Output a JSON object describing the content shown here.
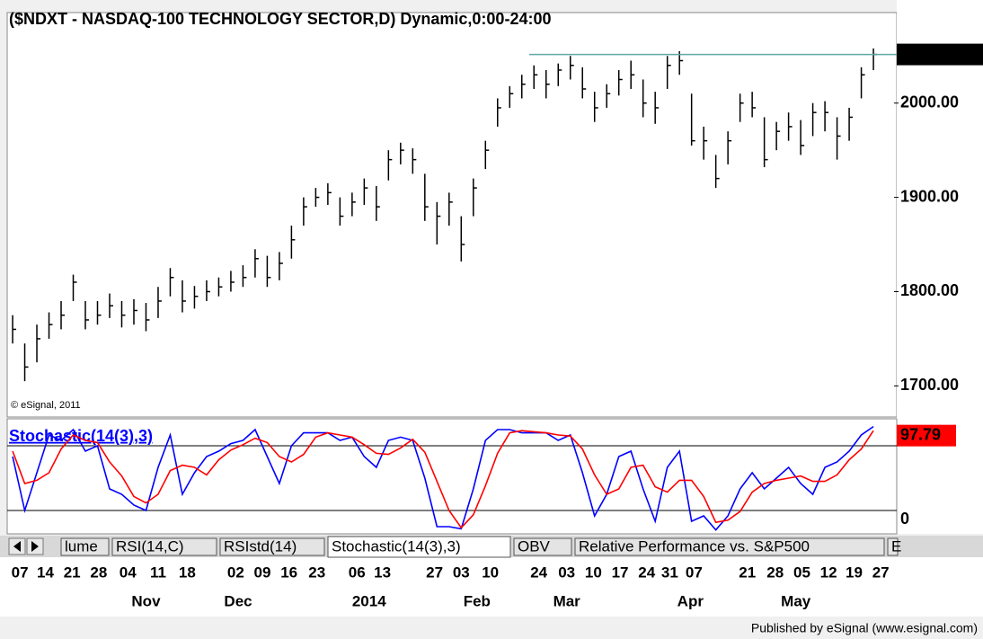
{
  "chart_data": [
    {
      "type": "ohlc",
      "title": "($NDXT - NASDAQ-100 TECHNOLOGY SECTOR,D) Dynamic,0:00-24:00",
      "annotation": "© eSignal, 2011",
      "color": "#000000",
      "last_color": "#5fa8a8",
      "xlim": [
        -0.3,
        72.7
      ],
      "ylim": [
        1667,
        2096
      ],
      "yticks": [
        {
          "value": 1700,
          "label": "1700.00"
        },
        {
          "value": 1800,
          "label": "1800.00"
        },
        {
          "value": 1900,
          "label": "1900.00"
        },
        {
          "value": 2000,
          "label": "2000.00"
        }
      ],
      "xticks": [
        {
          "value": 0.6,
          "label": "07"
        },
        {
          "value": 2.7,
          "label": "14"
        },
        {
          "value": 4.9,
          "label": "21"
        },
        {
          "value": 7.1,
          "label": "28"
        },
        {
          "value": 9.5,
          "label": "04"
        },
        {
          "value": 12.0,
          "label": "11"
        },
        {
          "value": 14.4,
          "label": "18"
        },
        {
          "value": 18.4,
          "label": "02"
        },
        {
          "value": 20.6,
          "label": "09"
        },
        {
          "value": 22.8,
          "label": "16"
        },
        {
          "value": 25.1,
          "label": "23"
        },
        {
          "value": 28.4,
          "label": "06"
        },
        {
          "value": 30.5,
          "label": "13"
        },
        {
          "value": 34.8,
          "label": "27"
        },
        {
          "value": 37.0,
          "label": "03"
        },
        {
          "value": 39.4,
          "label": "10"
        },
        {
          "value": 43.4,
          "label": "24"
        },
        {
          "value": 45.7,
          "label": "03"
        },
        {
          "value": 47.9,
          "label": "10"
        },
        {
          "value": 50.1,
          "label": "17"
        },
        {
          "value": 52.3,
          "label": "24"
        },
        {
          "value": 54.2,
          "label": "31"
        },
        {
          "value": 56.2,
          "label": "07"
        },
        {
          "value": 60.6,
          "label": "21"
        },
        {
          "value": 62.9,
          "label": "28"
        },
        {
          "value": 65.1,
          "label": "05"
        },
        {
          "value": 67.3,
          "label": "12"
        },
        {
          "value": 69.4,
          "label": "19"
        },
        {
          "value": 71.6,
          "label": "27"
        }
      ],
      "month_ticks": [
        {
          "value": 11.0,
          "label": "Nov"
        },
        {
          "value": 18.6,
          "label": "Dec"
        },
        {
          "value": 29.4,
          "label": "2014"
        },
        {
          "value": 38.3,
          "label": "Feb"
        },
        {
          "value": 45.7,
          "label": "Mar"
        },
        {
          "value": 55.9,
          "label": "Apr"
        },
        {
          "value": 64.6,
          "label": "May"
        }
      ],
      "high": [
        1775,
        1745,
        1765,
        1778,
        1790,
        1818,
        1790,
        1790,
        1798,
        1790,
        1792,
        1788,
        1805,
        1825,
        1812,
        1806,
        1812,
        1815,
        1822,
        1828,
        1845,
        1838,
        1842,
        1870,
        1900,
        1910,
        1915,
        1900,
        1905,
        1920,
        1912,
        1950,
        1958,
        1952,
        1925,
        1895,
        1905,
        1880,
        1920,
        1960,
        2005,
        2018,
        2030,
        2040,
        2035,
        2042,
        2050,
        2038,
        2012,
        2020,
        2035,
        2045,
        2025,
        2012,
        2050,
        2055,
        2010,
        1975,
        1945,
        1970,
        2010,
        2012,
        1985,
        1980,
        1990,
        1982,
        2000,
        2002,
        1985,
        1995,
        2038,
        2058
      ],
      "low": [
        1745,
        1705,
        1725,
        1750,
        1760,
        1790,
        1760,
        1765,
        1772,
        1762,
        1765,
        1758,
        1772,
        1795,
        1778,
        1782,
        1790,
        1795,
        1800,
        1805,
        1815,
        1805,
        1812,
        1835,
        1870,
        1890,
        1892,
        1870,
        1880,
        1892,
        1875,
        1918,
        1935,
        1925,
        1875,
        1850,
        1870,
        1832,
        1880,
        1930,
        1975,
        1995,
        2005,
        2015,
        2005,
        2018,
        2025,
        2005,
        1980,
        1995,
        2008,
        2015,
        1985,
        1978,
        2015,
        2030,
        1955,
        1940,
        1910,
        1935,
        1980,
        1985,
        1932,
        1950,
        1960,
        1945,
        1965,
        1970,
        1940,
        1960,
        2005,
        2035
      ],
      "close": [
        1760,
        1720,
        1750,
        1765,
        1775,
        1810,
        1770,
        1775,
        1785,
        1775,
        1780,
        1770,
        1790,
        1815,
        1790,
        1795,
        1800,
        1805,
        1810,
        1815,
        1835,
        1815,
        1830,
        1855,
        1890,
        1900,
        1905,
        1880,
        1895,
        1910,
        1890,
        1940,
        1950,
        1940,
        1890,
        1880,
        1895,
        1850,
        1910,
        1950,
        1995,
        2010,
        2020,
        2030,
        2020,
        2035,
        2040,
        2015,
        1995,
        2010,
        2025,
        2030,
        2000,
        1995,
        2040,
        2045,
        1960,
        1960,
        1920,
        1960,
        2000,
        1995,
        1940,
        1970,
        1975,
        1955,
        1990,
        1990,
        1965,
        1985,
        2030,
        2051.58
      ]
    },
    {
      "type": "line",
      "title": "Stochastic(14(3),3)",
      "xlim": [
        -0.3,
        72.7
      ],
      "ylim": [
        0,
        100
      ],
      "yticks": [
        0
      ],
      "levels": [
        20,
        80
      ],
      "label_color": "#ff0000",
      "series": [
        {
          "color": "#0000ff",
          "values": [
            70,
            20,
            55,
            90,
            85,
            95,
            75,
            80,
            40,
            35,
            25,
            20,
            60,
            90,
            35,
            55,
            70,
            75,
            82,
            85,
            95,
            70,
            45,
            80,
            92,
            92,
            92,
            85,
            88,
            70,
            60,
            85,
            88,
            85,
            50,
            5,
            5,
            3,
            40,
            85,
            95,
            95,
            92,
            92,
            92,
            85,
            90,
            55,
            15,
            35,
            70,
            75,
            40,
            10,
            60,
            75,
            10,
            15,
            2,
            15,
            40,
            55,
            40,
            50,
            60,
            45,
            35,
            60,
            65,
            75,
            90,
            97.79
          ]
        },
        {
          "color": "#ff0000",
          "values": [
            75,
            45,
            48,
            55,
            77,
            90,
            85,
            83,
            65,
            52,
            33,
            27,
            35,
            57,
            62,
            60,
            53,
            67,
            76,
            81,
            87,
            83,
            70,
            65,
            72,
            88,
            92,
            90,
            88,
            81,
            73,
            72,
            78,
            86,
            74,
            47,
            20,
            4,
            16,
            43,
            73,
            92,
            94,
            93,
            92,
            90,
            89,
            77,
            53,
            35,
            40,
            60,
            62,
            42,
            37,
            48,
            48,
            33,
            9,
            11,
            19,
            37,
            45,
            48,
            50,
            52,
            47,
            47,
            53,
            67,
            77,
            94
          ]
        }
      ]
    }
  ],
  "tabs": {
    "items": [
      "lume",
      "RSI(14,C)",
      "RSIstd(14)",
      "Stochastic(14(3),3)",
      "OBV",
      "Relative Performance vs. S&P500",
      "E"
    ],
    "active": 3
  },
  "footer": "Published by eSignal (www.esignal.com)"
}
